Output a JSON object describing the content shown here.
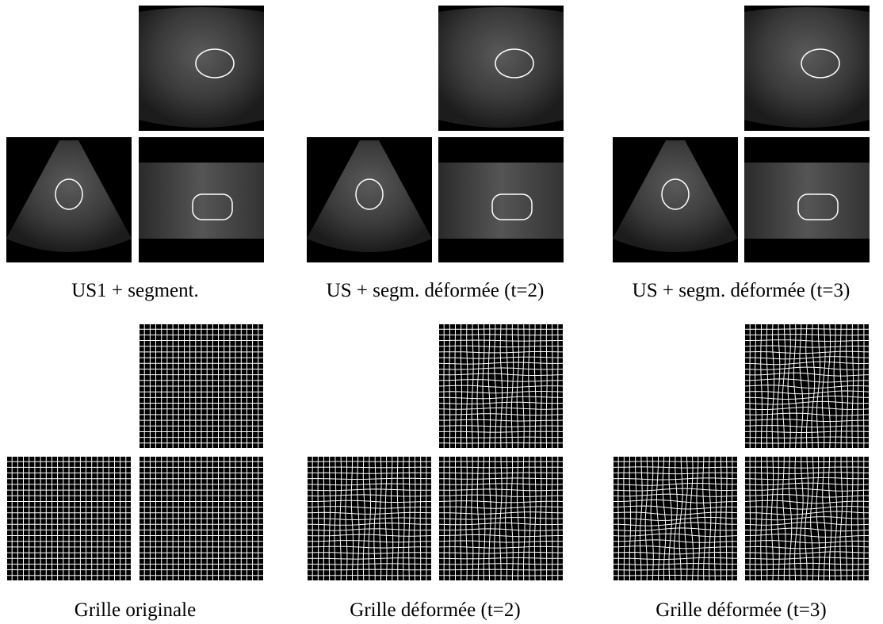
{
  "panels": [
    {
      "caption": "US1 + segment."
    },
    {
      "caption": "US + segm. déformée (t=2)"
    },
    {
      "caption": "US + segm. déformée (t=3)"
    },
    {
      "caption": "Grille originale"
    },
    {
      "caption": "Grille déformée (t=2)"
    },
    {
      "caption": "Grille déformée (t=3)"
    }
  ]
}
